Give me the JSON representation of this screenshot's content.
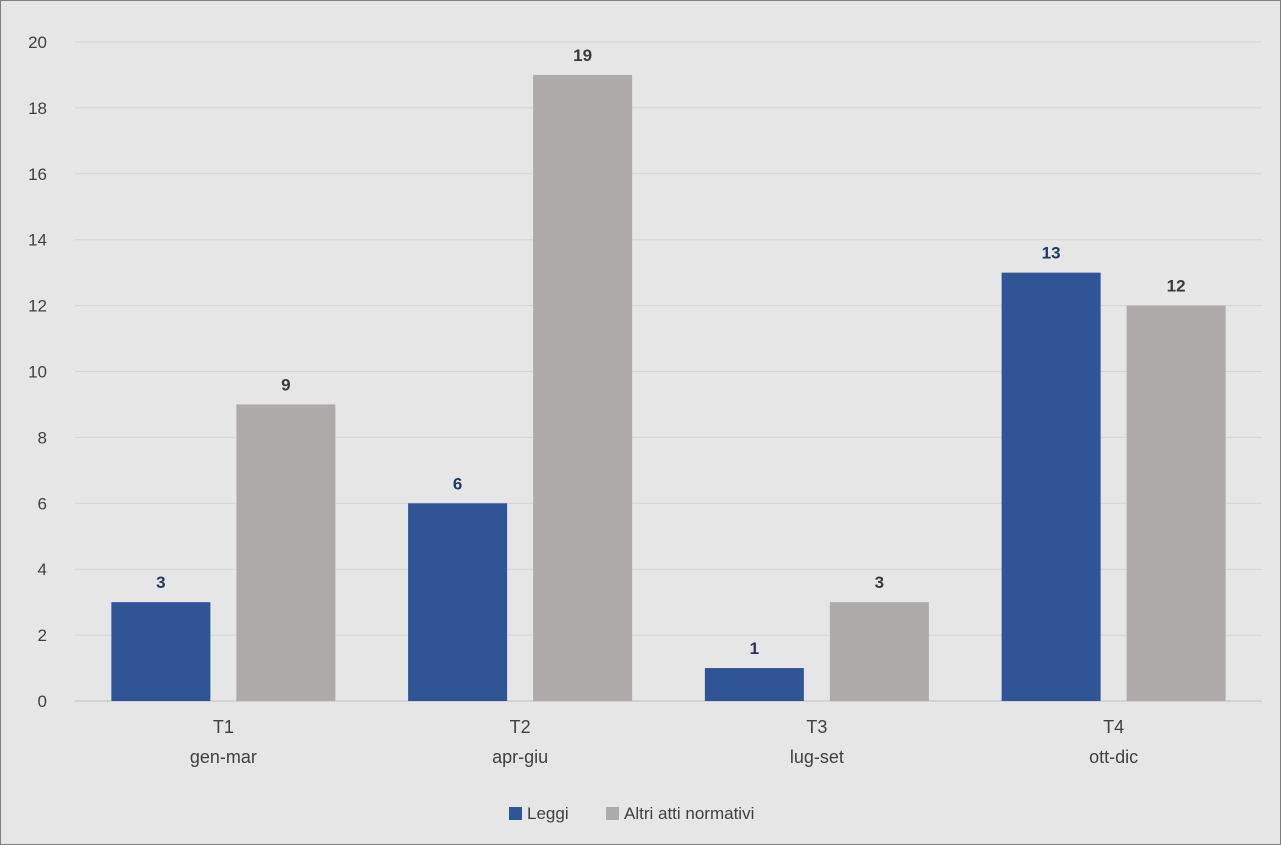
{
  "chart_data": {
    "type": "bar",
    "title": "",
    "xlabel": "",
    "ylabel": "",
    "categories": [
      [
        "T1",
        "gen-mar"
      ],
      [
        "T2",
        "apr-giu"
      ],
      [
        "T3",
        "lug-set"
      ],
      [
        "T4",
        "ott-dic"
      ]
    ],
    "series": [
      {
        "name": "Leggi",
        "values": [
          3,
          6,
          1,
          13
        ],
        "color": "#2f5597",
        "label_color": "#1f3864"
      },
      {
        "name": "Altri atti normativi",
        "values": [
          9,
          19,
          3,
          12
        ],
        "color": "#aeaaaa",
        "label_color": "#3a3a3a"
      }
    ],
    "ylim": [
      0,
      20
    ],
    "yticks": [
      0,
      2,
      4,
      6,
      8,
      10,
      12,
      14,
      16,
      18,
      20
    ],
    "grid": true,
    "legend_position": "bottom",
    "data_labels": true,
    "colors": {
      "background": "#e6e6e6",
      "gridline": "#d4d4d4",
      "axis": "#bfbfbf"
    }
  }
}
